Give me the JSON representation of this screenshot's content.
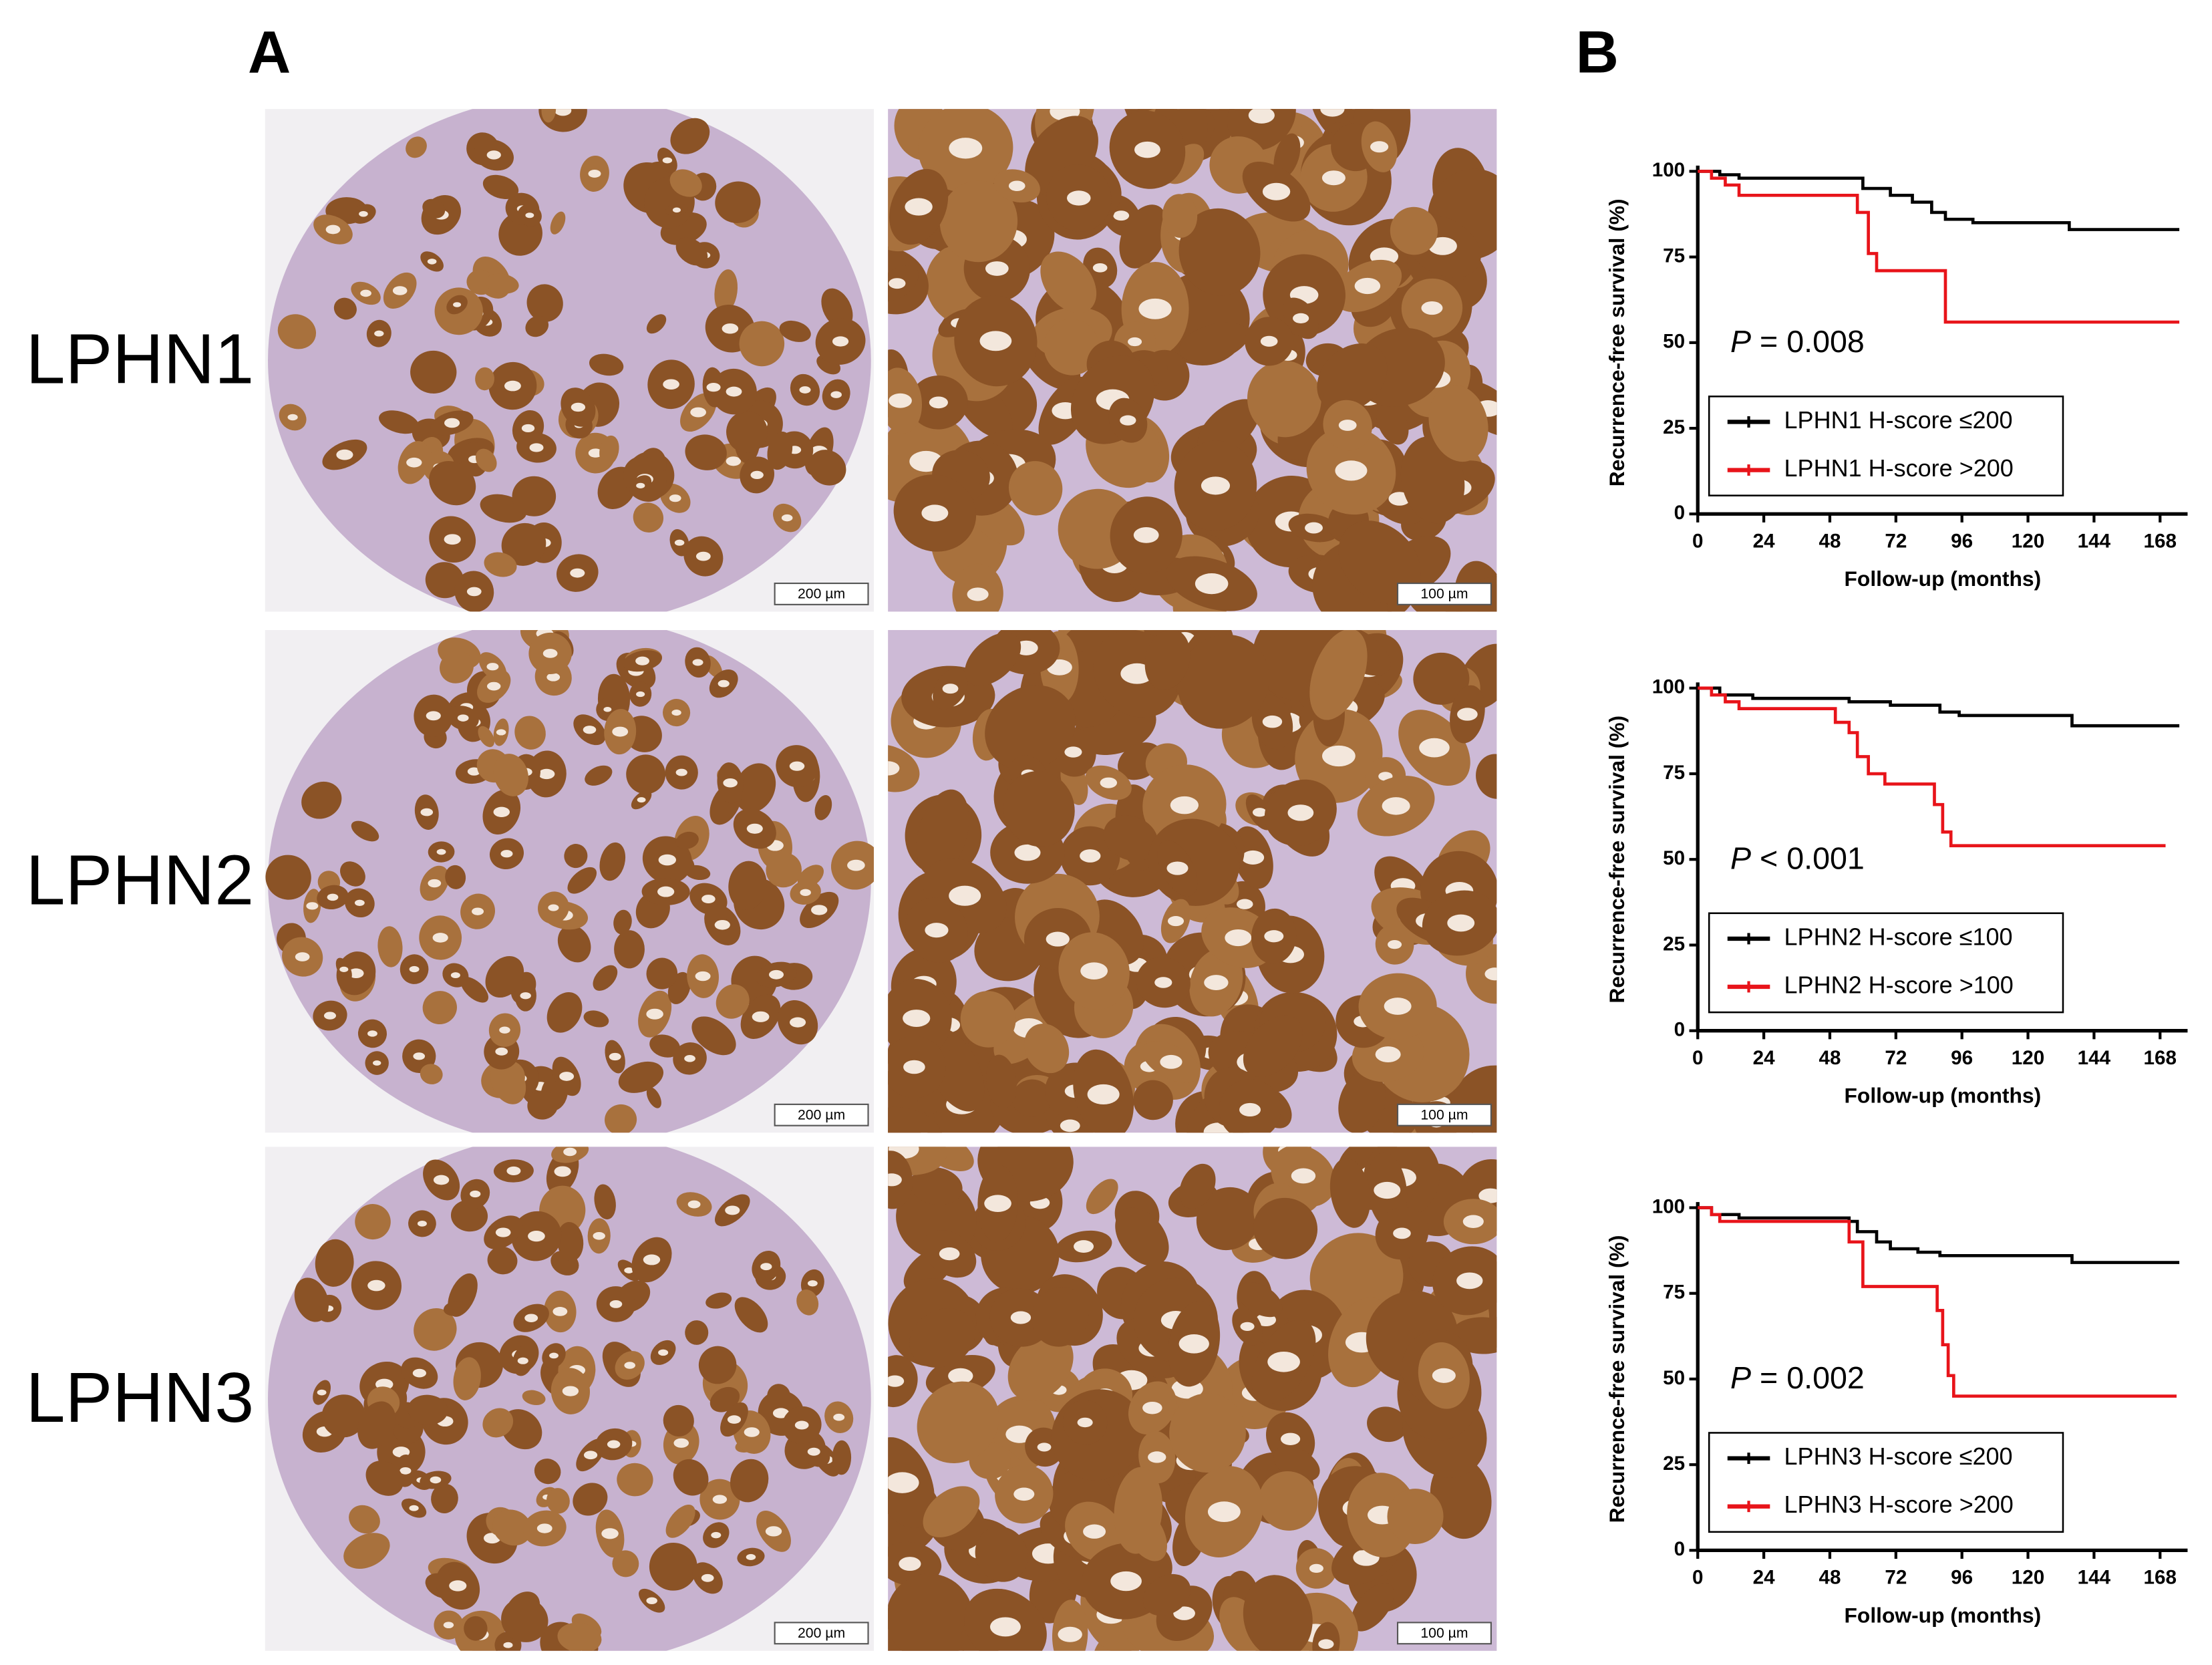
{
  "panel_labels": [
    "A",
    "B"
  ],
  "images": {
    "row_labels": [
      "LPHN1",
      "LPHN2",
      "LPHN3"
    ],
    "scale_bars": [
      [
        "200 µm",
        "100 µm"
      ],
      [
        "200 µm",
        "100 µm"
      ],
      [
        "200 µm",
        "100 µm"
      ]
    ]
  },
  "chart_data": [
    {
      "type": "km",
      "y_label": "Recurrence-free survival (%)",
      "x_label": "Follow-up (months)",
      "annotation": {
        "italic": "P",
        "text": " = 0.008"
      },
      "legend": "lower left",
      "xlim": [
        0,
        178
      ],
      "xticks": [
        0,
        24,
        48,
        72,
        96,
        120,
        144,
        168
      ],
      "ylim": [
        0,
        100
      ],
      "yticks": [
        0,
        25,
        50,
        75,
        100
      ],
      "series": [
        {
          "name": "LPHN1 H-score ≤200",
          "color": "#000000",
          "x": [
            0,
            8,
            15,
            60,
            70,
            78,
            85,
            90,
            100,
            135,
            175
          ],
          "values": [
            100,
            99,
            98,
            95,
            93,
            91,
            88,
            86,
            85,
            83,
            83
          ]
        },
        {
          "name": "LPHN1 H-score >200",
          "color": "#e8141a",
          "x": [
            0,
            5,
            10,
            15,
            58,
            62,
            65,
            90,
            175
          ],
          "values": [
            100,
            98,
            96,
            93,
            88,
            76,
            71,
            56,
            56
          ]
        }
      ]
    },
    {
      "type": "km",
      "y_label": "Recurrence-free survival (%)",
      "x_label": "Follow-up (months)",
      "annotation": {
        "italic": "P",
        "text": " < 0.001"
      },
      "legend": "lower left",
      "xlim": [
        0,
        178
      ],
      "xticks": [
        0,
        24,
        48,
        72,
        96,
        120,
        144,
        168
      ],
      "ylim": [
        0,
        100
      ],
      "yticks": [
        0,
        25,
        50,
        75,
        100
      ],
      "series": [
        {
          "name": "LPHN2 H-score ≤100",
          "color": "#000000",
          "x": [
            0,
            8,
            20,
            55,
            70,
            88,
            95,
            136,
            175
          ],
          "values": [
            100,
            98,
            97,
            96,
            95,
            93,
            92,
            89,
            89
          ]
        },
        {
          "name": "LPHN2 H-score >100",
          "color": "#e8141a",
          "x": [
            0,
            5,
            10,
            15,
            50,
            55,
            58,
            62,
            68,
            86,
            89,
            92,
            170
          ],
          "values": [
            100,
            98,
            96,
            94,
            90,
            87,
            80,
            75,
            72,
            66,
            58,
            54,
            54
          ]
        }
      ]
    },
    {
      "type": "km",
      "y_label": "Recurrence-free survival (%)",
      "x_label": "Follow-up (months)",
      "annotation": {
        "italic": "P",
        "text": " = 0.002"
      },
      "legend": "lower left",
      "xlim": [
        0,
        178
      ],
      "xticks": [
        0,
        24,
        48,
        72,
        96,
        120,
        144,
        168
      ],
      "ylim": [
        0,
        100
      ],
      "yticks": [
        0,
        25,
        50,
        75,
        100
      ],
      "series": [
        {
          "name": "LPHN3 H-score ≤200",
          "color": "#000000",
          "x": [
            0,
            5,
            15,
            55,
            58,
            65,
            70,
            80,
            88,
            136,
            175
          ],
          "values": [
            100,
            98,
            97,
            96,
            93,
            90,
            88,
            87,
            86,
            84,
            84
          ]
        },
        {
          "name": "LPHN3 H-score >200",
          "color": "#e8141a",
          "x": [
            0,
            5,
            8,
            55,
            60,
            87,
            89,
            91,
            93,
            174
          ],
          "values": [
            100,
            98,
            96,
            90,
            77,
            70,
            60,
            51,
            45,
            45
          ]
        }
      ]
    }
  ]
}
